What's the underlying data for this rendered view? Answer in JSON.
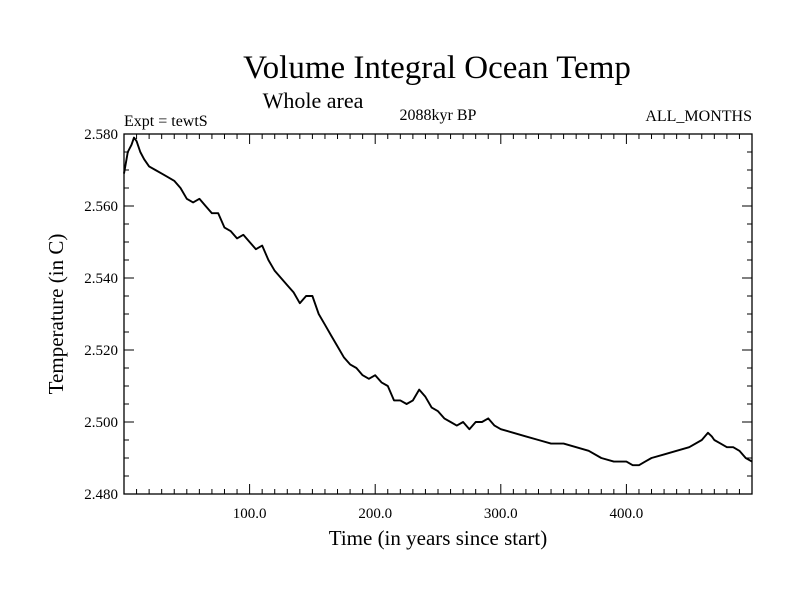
{
  "chart_data": {
    "type": "line",
    "title": "Volume Integral Ocean Temp",
    "subtitle": "Whole area",
    "annotations": {
      "left": "Expt = tewtS",
      "center": "2088kyr BP",
      "right": "ALL_MONTHS"
    },
    "xlabel": "Time (in years since start)",
    "ylabel": "Temperature (in C)",
    "xlim": [
      0,
      500
    ],
    "ylim": [
      2.48,
      2.58
    ],
    "x_ticks": [
      100,
      200,
      300,
      400
    ],
    "x_tick_labels": [
      "100.0",
      "200.0",
      "300.0",
      "400.0"
    ],
    "y_ticks": [
      2.48,
      2.5,
      2.52,
      2.54,
      2.56,
      2.58
    ],
    "y_tick_labels": [
      "2.480",
      "2.500",
      "2.520",
      "2.540",
      "2.560",
      "2.580"
    ],
    "grid": false,
    "series": [
      {
        "name": "Volume integral ocean temperature",
        "color": "#000000",
        "x": [
          0,
          3,
          6,
          8,
          10,
          13,
          16,
          20,
          25,
          30,
          35,
          40,
          45,
          50,
          55,
          60,
          65,
          70,
          75,
          80,
          85,
          90,
          95,
          100,
          105,
          110,
          115,
          120,
          125,
          130,
          135,
          140,
          145,
          150,
          155,
          160,
          165,
          170,
          175,
          180,
          185,
          190,
          195,
          200,
          205,
          210,
          215,
          220,
          225,
          230,
          235,
          240,
          245,
          250,
          255,
          260,
          265,
          270,
          275,
          280,
          285,
          290,
          295,
          300,
          310,
          320,
          330,
          340,
          350,
          360,
          370,
          380,
          390,
          400,
          405,
          410,
          415,
          420,
          430,
          440,
          450,
          460,
          465,
          468,
          470,
          475,
          480,
          485,
          490,
          495,
          500
        ],
        "y": [
          2.569,
          2.575,
          2.577,
          2.579,
          2.578,
          2.575,
          2.573,
          2.571,
          2.57,
          2.569,
          2.568,
          2.567,
          2.565,
          2.562,
          2.561,
          2.562,
          2.56,
          2.558,
          2.558,
          2.554,
          2.553,
          2.551,
          2.552,
          2.55,
          2.548,
          2.549,
          2.545,
          2.542,
          2.54,
          2.538,
          2.536,
          2.533,
          2.535,
          2.535,
          2.53,
          2.527,
          2.524,
          2.521,
          2.518,
          2.516,
          2.515,
          2.513,
          2.512,
          2.513,
          2.511,
          2.51,
          2.506,
          2.506,
          2.505,
          2.506,
          2.509,
          2.507,
          2.504,
          2.503,
          2.501,
          2.5,
          2.499,
          2.5,
          2.498,
          2.5,
          2.5,
          2.501,
          2.499,
          2.498,
          2.497,
          2.496,
          2.495,
          2.494,
          2.494,
          2.493,
          2.492,
          2.49,
          2.489,
          2.489,
          2.488,
          2.488,
          2.489,
          2.49,
          2.491,
          2.492,
          2.493,
          2.495,
          2.497,
          2.496,
          2.495,
          2.494,
          2.493,
          2.493,
          2.492,
          2.49,
          2.489
        ]
      }
    ]
  }
}
